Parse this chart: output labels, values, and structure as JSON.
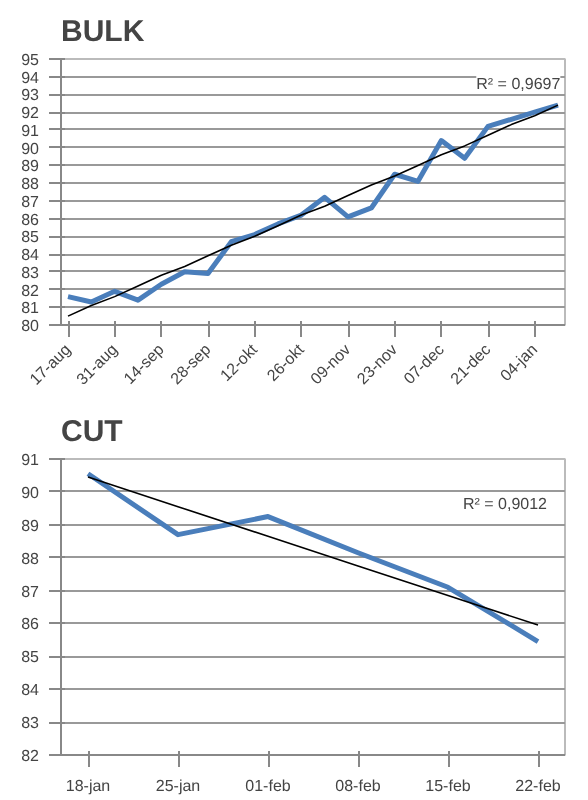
{
  "chart_data": [
    {
      "type": "line",
      "title": "BULK",
      "categories": [
        "17-aug",
        null,
        "31-aug",
        null,
        "14-sep",
        null,
        "28-sep",
        null,
        "12-okt",
        null,
        "26-okt",
        null,
        "09-nov",
        null,
        "23-nov",
        null,
        "07-dec",
        null,
        "21-dec",
        null,
        "04-jan",
        null
      ],
      "series": [
        {
          "color": "#4a7ebb",
          "values": [
            81.6,
            81.3,
            81.9,
            81.4,
            82.3,
            83.0,
            82.9,
            84.7,
            85.1,
            85.7,
            86.2,
            87.2,
            86.1,
            86.6,
            88.5,
            88.1,
            90.4,
            89.4,
            91.2,
            91.6,
            92.0,
            92.4
          ]
        },
        {
          "color": "#000000",
          "values": [
            80.5,
            81.1,
            81.6,
            82.2,
            82.8,
            83.3,
            83.9,
            84.5,
            85.0,
            85.6,
            86.2,
            86.7,
            87.3,
            87.9,
            88.4,
            89.0,
            89.6,
            90.1,
            90.7,
            91.3,
            91.8,
            92.4
          ]
        }
      ],
      "ylim": [
        80,
        95
      ],
      "yticks": [
        80,
        81,
        82,
        83,
        84,
        85,
        86,
        87,
        88,
        89,
        90,
        91,
        92,
        93,
        94,
        95
      ],
      "grid": "y",
      "annotations": [
        "R² = 0,9697"
      ]
    },
    {
      "type": "line",
      "title": "CUT",
      "categories": [
        "18-jan",
        "25-jan",
        "01-feb",
        "08-feb",
        "15-feb",
        "22-feb"
      ],
      "series": [
        {
          "color": "#4a7ebb",
          "values": [
            90.55,
            88.7,
            89.25,
            88.15,
            87.1,
            85.45
          ]
        },
        {
          "color": "#000000",
          "values": [
            90.45,
            89.55,
            88.65,
            87.75,
            86.85,
            85.95
          ]
        }
      ],
      "ylim": [
        82,
        91
      ],
      "yticks": [
        82,
        83,
        84,
        85,
        86,
        87,
        88,
        89,
        90,
        91
      ],
      "grid": "y",
      "annotations": [
        "R² = 0,9012"
      ]
    }
  ]
}
